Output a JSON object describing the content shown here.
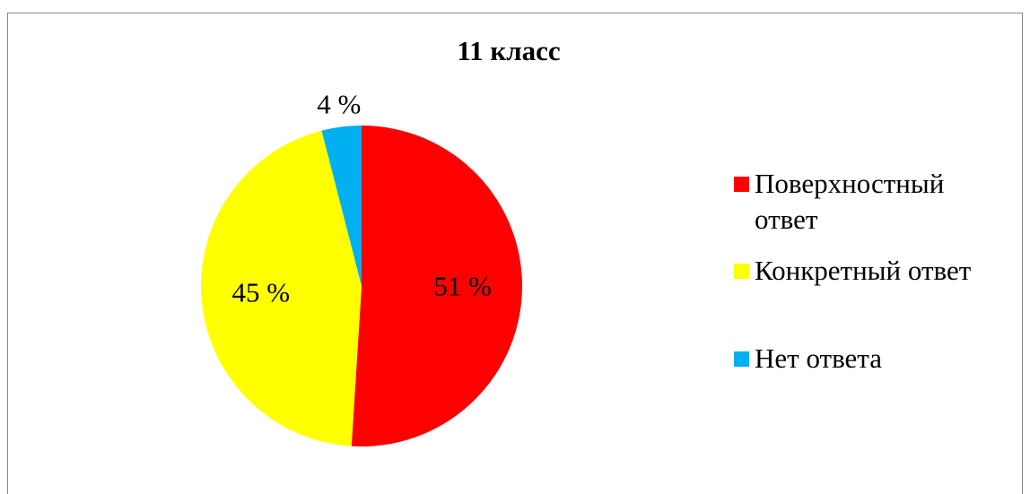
{
  "chart_data": {
    "type": "pie",
    "title": "11 класс",
    "categories": [
      "Поверхностный ответ",
      "Конкретный ответ",
      "Нет ответа"
    ],
    "values": [
      51,
      45,
      4
    ],
    "value_labels": [
      "51 %",
      "45 %",
      "4 %"
    ],
    "colors": [
      "#ff0000",
      "#ffff00",
      "#00b0f0"
    ]
  }
}
